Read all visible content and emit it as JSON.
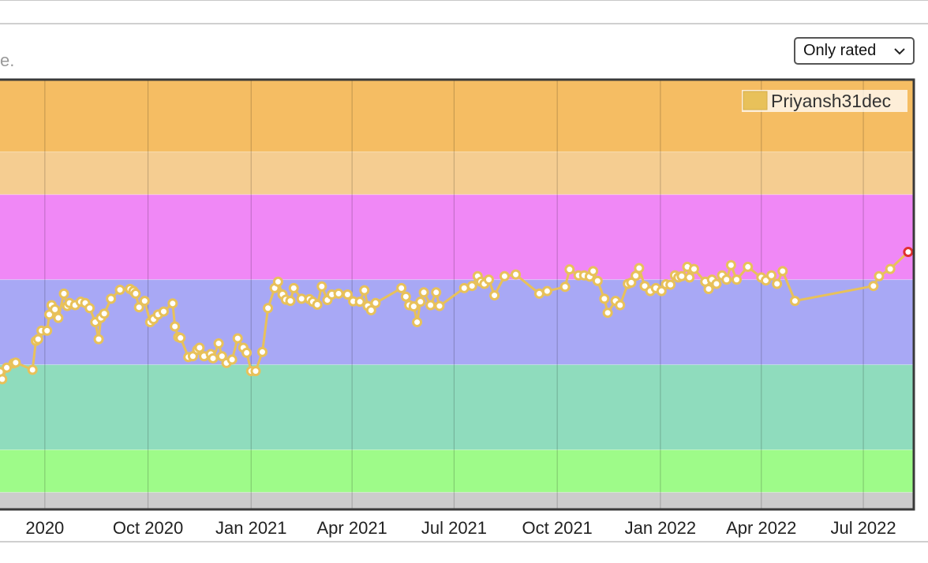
{
  "page": {
    "cut_text": "e.",
    "filter": {
      "selected": "Only rated",
      "icon": "chevron-down-icon"
    }
  },
  "colors": {
    "series": "#e8c15a",
    "marker_fill": "#ffffff",
    "last_marker": "#e03030",
    "bands": [
      "#f5bd63",
      "#f5cd91",
      "#f088f6",
      "#a8a8f5",
      "#8fdcbd",
      "#9efb89",
      "#cccccc"
    ]
  },
  "chart_data": {
    "type": "line",
    "legend": {
      "entries": [
        "Priyansh31dec"
      ],
      "position": "top-right"
    },
    "x_ticks": [
      "2020",
      "Oct 2020",
      "Jan 2021",
      "Apr 2021",
      "Jul 2021",
      "Oct 2021",
      "Jan 2022",
      "Apr 2022",
      "Jul 2022"
    ],
    "xlim": [
      "2020-05-22",
      "2022-08-15"
    ],
    "ylim": [
      1060,
      2070
    ],
    "bands": [
      {
        "from": 1900,
        "to": 2070
      },
      {
        "from": 1800,
        "to": 1900
      },
      {
        "from": 1600,
        "to": 1800
      },
      {
        "from": 1400,
        "to": 1600
      },
      {
        "from": 1200,
        "to": 1400
      },
      {
        "from": 1100,
        "to": 1200
      },
      {
        "from": 1060,
        "to": 1100
      }
    ],
    "grid": true,
    "series": [
      {
        "name": "Priyansh31dec",
        "points": [
          [
            "2020-05-22",
            1383
          ],
          [
            "2020-05-24",
            1366
          ],
          [
            "2020-05-28",
            1393
          ],
          [
            "2020-06-03",
            1403
          ],
          [
            "2020-06-05",
            1405
          ],
          [
            "2020-06-20",
            1388
          ],
          [
            "2020-06-23",
            1456
          ],
          [
            "2020-06-25",
            1460
          ],
          [
            "2020-06-28",
            1480
          ],
          [
            "2020-07-03",
            1480
          ],
          [
            "2020-07-05",
            1518
          ],
          [
            "2020-07-07",
            1540
          ],
          [
            "2020-07-10",
            1530
          ],
          [
            "2020-07-13",
            1510
          ],
          [
            "2020-07-18",
            1567
          ],
          [
            "2020-07-21",
            1538
          ],
          [
            "2020-07-23",
            1545
          ],
          [
            "2020-07-28",
            1540
          ],
          [
            "2020-08-02",
            1548
          ],
          [
            "2020-08-06",
            1545
          ],
          [
            "2020-08-10",
            1533
          ],
          [
            "2020-08-15",
            1500
          ],
          [
            "2020-08-18",
            1460
          ],
          [
            "2020-08-20",
            1510
          ],
          [
            "2020-08-23",
            1520
          ],
          [
            "2020-08-29",
            1555
          ],
          [
            "2020-09-06",
            1576
          ],
          [
            "2020-09-15",
            1578
          ],
          [
            "2020-09-18",
            1573
          ],
          [
            "2020-09-20",
            1567
          ],
          [
            "2020-09-23",
            1535
          ],
          [
            "2020-09-28",
            1550
          ],
          [
            "2020-10-03",
            1500
          ],
          [
            "2020-10-06",
            1507
          ],
          [
            "2020-10-10",
            1518
          ],
          [
            "2020-10-15",
            1525
          ],
          [
            "2020-10-23",
            1544
          ],
          [
            "2020-10-25",
            1490
          ],
          [
            "2020-10-28",
            1465
          ],
          [
            "2020-10-30",
            1463
          ],
          [
            "2020-11-06",
            1418
          ],
          [
            "2020-11-10",
            1420
          ],
          [
            "2020-11-14",
            1435
          ],
          [
            "2020-11-16",
            1440
          ],
          [
            "2020-11-20",
            1420
          ],
          [
            "2020-11-26",
            1425
          ],
          [
            "2020-11-28",
            1415
          ],
          [
            "2020-12-03",
            1450
          ],
          [
            "2020-12-06",
            1420
          ],
          [
            "2020-12-10",
            1404
          ],
          [
            "2020-12-15",
            1412
          ],
          [
            "2020-12-20",
            1462
          ],
          [
            "2020-12-25",
            1440
          ],
          [
            "2020-12-28",
            1428
          ],
          [
            "2021-01-01",
            1385
          ],
          [
            "2021-01-05",
            1385
          ],
          [
            "2021-01-11",
            1430
          ],
          [
            "2021-01-16",
            1533
          ],
          [
            "2021-01-22",
            1580
          ],
          [
            "2021-01-25",
            1595
          ],
          [
            "2021-01-29",
            1565
          ],
          [
            "2021-02-01",
            1553
          ],
          [
            "2021-02-05",
            1550
          ],
          [
            "2021-02-08",
            1580
          ],
          [
            "2021-02-15",
            1555
          ],
          [
            "2021-02-22",
            1554
          ],
          [
            "2021-02-25",
            1548
          ],
          [
            "2021-03-01",
            1541
          ],
          [
            "2021-03-05",
            1584
          ],
          [
            "2021-03-10",
            1552
          ],
          [
            "2021-03-14",
            1565
          ],
          [
            "2021-03-20",
            1567
          ],
          [
            "2021-03-28",
            1565
          ],
          [
            "2021-04-02",
            1549
          ],
          [
            "2021-04-08",
            1548
          ],
          [
            "2021-04-12",
            1575
          ],
          [
            "2021-04-15",
            1538
          ],
          [
            "2021-04-18",
            1528
          ],
          [
            "2021-04-22",
            1545
          ],
          [
            "2021-05-15",
            1580
          ],
          [
            "2021-05-19",
            1560
          ],
          [
            "2021-05-22",
            1540
          ],
          [
            "2021-05-26",
            1537
          ],
          [
            "2021-05-29",
            1500
          ],
          [
            "2021-06-01",
            1548
          ],
          [
            "2021-06-04",
            1570
          ],
          [
            "2021-06-10",
            1540
          ],
          [
            "2021-06-15",
            1570
          ],
          [
            "2021-06-18",
            1538
          ],
          [
            "2021-07-10",
            1580
          ],
          [
            "2021-07-17",
            1585
          ],
          [
            "2021-07-22",
            1608
          ],
          [
            "2021-07-25",
            1595
          ],
          [
            "2021-07-28",
            1590
          ],
          [
            "2021-08-01",
            1600
          ],
          [
            "2021-08-06",
            1563
          ],
          [
            "2021-08-15",
            1608
          ],
          [
            "2021-08-25",
            1612
          ],
          [
            "2021-09-15",
            1567
          ],
          [
            "2021-09-22",
            1573
          ],
          [
            "2021-10-08",
            1583
          ],
          [
            "2021-10-12",
            1624
          ],
          [
            "2021-10-20",
            1610
          ],
          [
            "2021-10-25",
            1610
          ],
          [
            "2021-10-30",
            1607
          ],
          [
            "2021-11-02",
            1620
          ],
          [
            "2021-11-06",
            1597
          ],
          [
            "2021-11-12",
            1555
          ],
          [
            "2021-11-15",
            1522
          ],
          [
            "2021-11-22",
            1550
          ],
          [
            "2021-11-26",
            1540
          ],
          [
            "2021-12-03",
            1590
          ],
          [
            "2021-12-06",
            1593
          ],
          [
            "2021-12-10",
            1609
          ],
          [
            "2021-12-13",
            1627
          ],
          [
            "2021-12-18",
            1585
          ],
          [
            "2021-12-23",
            1573
          ],
          [
            "2021-12-28",
            1580
          ],
          [
            "2022-01-02",
            1573
          ],
          [
            "2022-01-06",
            1589
          ],
          [
            "2022-01-10",
            1588
          ],
          [
            "2022-01-14",
            1610
          ],
          [
            "2022-01-17",
            1605
          ],
          [
            "2022-01-20",
            1608
          ],
          [
            "2022-01-25",
            1630
          ],
          [
            "2022-01-27",
            1605
          ],
          [
            "2022-01-31",
            1625
          ],
          [
            "2022-02-10",
            1595
          ],
          [
            "2022-02-13",
            1578
          ],
          [
            "2022-02-16",
            1600
          ],
          [
            "2022-02-20",
            1590
          ],
          [
            "2022-02-25",
            1610
          ],
          [
            "2022-03-01",
            1600
          ],
          [
            "2022-03-05",
            1634
          ],
          [
            "2022-03-10",
            1600
          ],
          [
            "2022-03-20",
            1630
          ],
          [
            "2022-04-01",
            1605
          ],
          [
            "2022-04-05",
            1598
          ],
          [
            "2022-04-10",
            1610
          ],
          [
            "2022-04-15",
            1590
          ],
          [
            "2022-04-20",
            1620
          ],
          [
            "2022-05-01",
            1550
          ],
          [
            "2022-07-10",
            1585
          ],
          [
            "2022-07-15",
            1608
          ],
          [
            "2022-07-25",
            1625
          ],
          [
            "2022-08-10",
            1665
          ]
        ]
      }
    ]
  }
}
